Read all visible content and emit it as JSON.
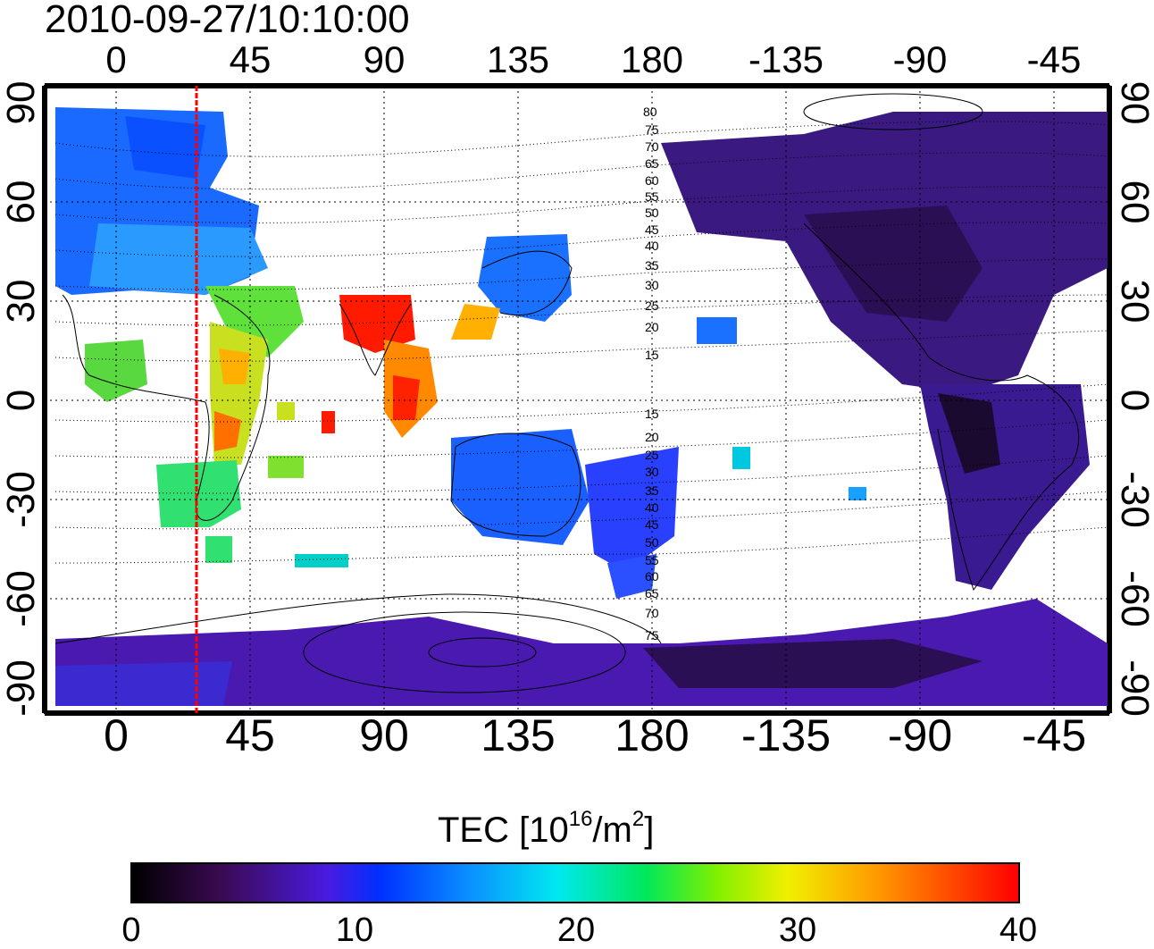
{
  "title": "2010-09-27/10:10:00",
  "top_ticks": [
    "0",
    "45",
    "90",
    "135",
    "180",
    "-135",
    "-90",
    "-45"
  ],
  "bottom_ticks": [
    "0",
    "45",
    "90",
    "135",
    "180",
    "-135",
    "-90",
    "-45"
  ],
  "left_ticks": [
    "90",
    "60",
    "30",
    "0",
    "-30",
    "-60",
    "-90"
  ],
  "right_ticks": [
    "90",
    "60",
    "30",
    "0",
    "-30",
    "-60",
    "-90"
  ],
  "contour_labels": [
    "80",
    "75",
    "70",
    "65",
    "60",
    "55",
    "50",
    "45",
    "40",
    "35",
    "30",
    "25",
    "20",
    "15",
    "15",
    "20",
    "25",
    "30",
    "35",
    "40",
    "45",
    "50",
    "55",
    "60",
    "65",
    "70",
    "75"
  ],
  "colorbar": {
    "title_main": "TEC  [10",
    "title_sup1": "16",
    "title_mid": "/m",
    "title_sup2": "2",
    "title_end": "]",
    "ticks": [
      "0",
      "10",
      "20",
      "30",
      "40"
    ],
    "range": [
      0,
      40
    ]
  },
  "map": {
    "lon_ticks_deg": [
      0,
      45,
      90,
      135,
      180,
      -135,
      -90,
      -45
    ],
    "lat_ticks_deg": [
      90,
      60,
      30,
      0,
      -30,
      -60,
      -90
    ],
    "red_meridian_lon": 28,
    "colors": {
      "tec_high": "#ff1a00",
      "tec_mid": "#00e85a",
      "tec_low": "#3a1070",
      "meridian": "#ff0000"
    }
  }
}
